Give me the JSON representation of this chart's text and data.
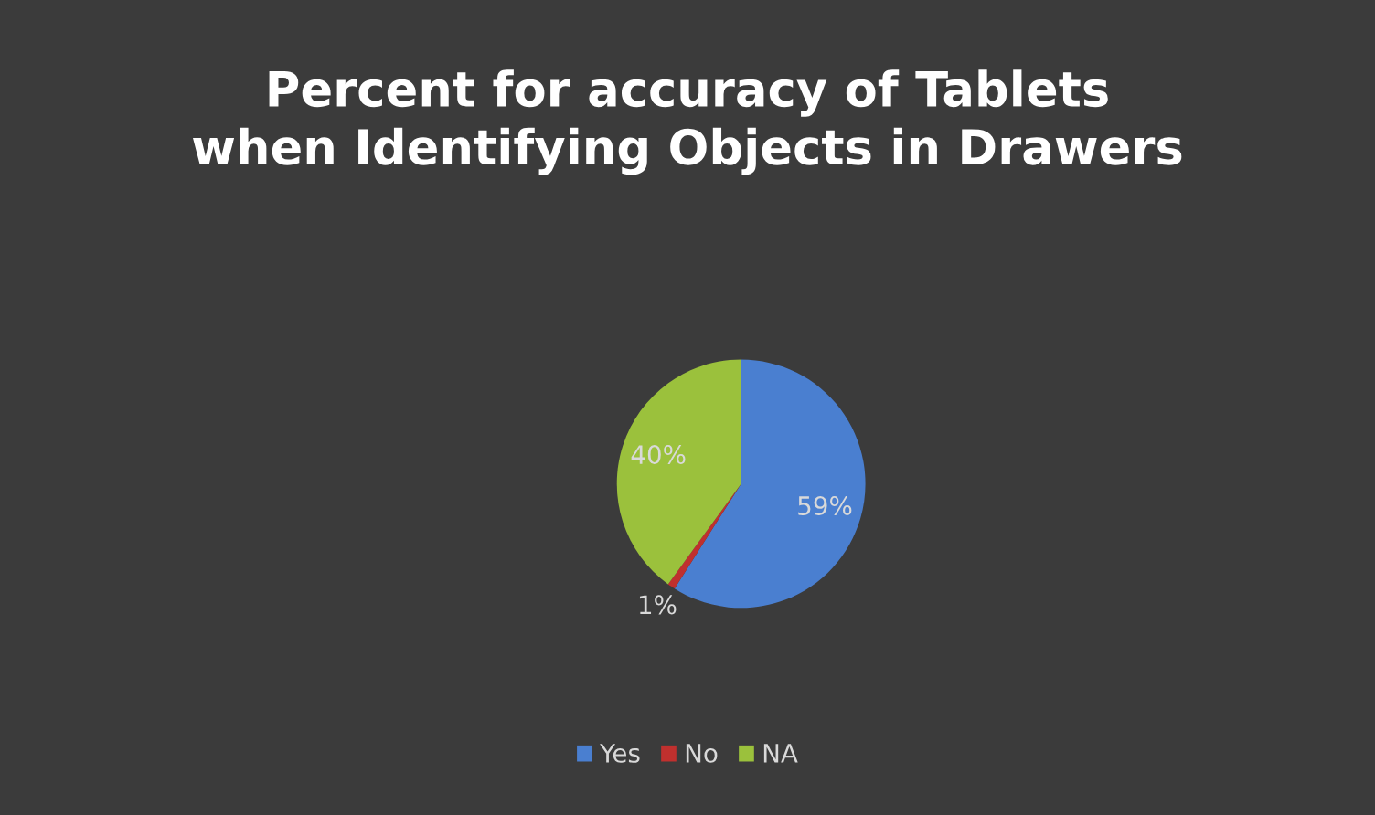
{
  "chart_data": {
    "type": "pie",
    "title": "Percent for accuracy of Tablets\nwhen Identifying Objects in Drawers",
    "categories": [
      "Yes",
      "No",
      "NA"
    ],
    "values": [
      59,
      1,
      40
    ],
    "colors": [
      "#4a7fd0",
      "#c0302e",
      "#9bc13c"
    ],
    "value_labels": [
      "59%",
      "1%",
      "40%"
    ],
    "legend": "bottom"
  }
}
